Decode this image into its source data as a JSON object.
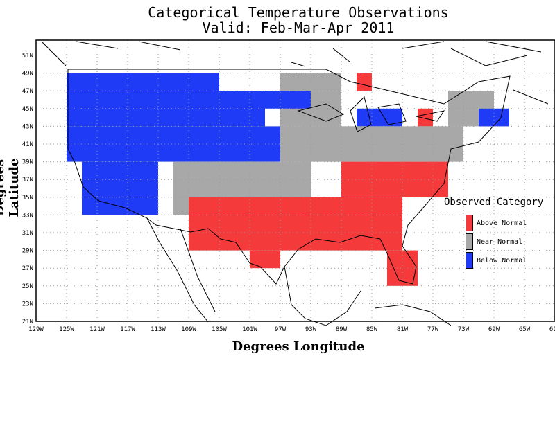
{
  "title_line1": "Categorical Temperature Observations",
  "title_line2": "Valid: Feb-Mar-Apr 2011",
  "xlabel": "Degrees Longitude",
  "ylabel": "Degrees Latitude",
  "legend": {
    "title": "Observed Category",
    "items": [
      {
        "label": "Above Normal",
        "color": "#f43a3a"
      },
      {
        "label": "Near Normal",
        "color": "#a8a8a8"
      },
      {
        "label": "Below Normal",
        "color": "#1f3bf5"
      }
    ]
  },
  "x_ticks": [
    "129W",
    "125W",
    "121W",
    "117W",
    "113W",
    "109W",
    "105W",
    "101W",
    "97W",
    "93W",
    "89W",
    "85W",
    "81W",
    "77W",
    "73W",
    "69W",
    "65W",
    "61W"
  ],
  "y_ticks": [
    "51N",
    "49N",
    "47N",
    "45N",
    "43N",
    "41N",
    "39N",
    "37N",
    "35N",
    "33N",
    "31N",
    "29N",
    "27N",
    "25N",
    "23N",
    "21N"
  ],
  "colors": {
    "above": "#f43a3a",
    "near": "#a8a8a8",
    "below": "#1f3bf5",
    "grid": "#9a9a9a"
  },
  "map_data": {
    "cell_size_deg": 2,
    "cells": [
      {
        "cat": "below",
        "lon": [
          -125,
          -105
        ],
        "lat": [
          47,
          49
        ]
      },
      {
        "cat": "near",
        "lon": [
          -97,
          -89
        ],
        "lat": [
          47,
          49
        ]
      },
      {
        "cat": "above",
        "lon": [
          -87,
          -85
        ],
        "lat": [
          47,
          49
        ]
      },
      {
        "cat": "below",
        "lon": [
          -125,
          -99
        ],
        "lat": [
          43,
          47
        ]
      },
      {
        "cat": "near",
        "lon": [
          -97,
          -89
        ],
        "lat": [
          43,
          47
        ]
      },
      {
        "cat": "below",
        "lon": [
          -99,
          -93
        ],
        "lat": [
          45,
          47
        ]
      },
      {
        "cat": "below",
        "lon": [
          -87,
          -81
        ],
        "lat": [
          43,
          45
        ]
      },
      {
        "cat": "above",
        "lon": [
          -79,
          -77
        ],
        "lat": [
          43,
          45
        ]
      },
      {
        "cat": "near",
        "lon": [
          -75,
          -69
        ],
        "lat": [
          43,
          47
        ]
      },
      {
        "cat": "below",
        "lon": [
          -71,
          -67
        ],
        "lat": [
          43,
          45
        ]
      },
      {
        "cat": "below",
        "lon": [
          -125,
          -97
        ],
        "lat": [
          39,
          43
        ]
      },
      {
        "cat": "near",
        "lon": [
          -97,
          -73
        ],
        "lat": [
          39,
          43
        ]
      },
      {
        "cat": "near",
        "lon": [
          -111,
          -93
        ],
        "lat": [
          33,
          39
        ]
      },
      {
        "cat": "above",
        "lon": [
          -89,
          -75
        ],
        "lat": [
          35,
          39
        ]
      },
      {
        "cat": "below",
        "lon": [
          -123,
          -113
        ],
        "lat": [
          33,
          39
        ]
      },
      {
        "cat": "above",
        "lon": [
          -109,
          -81
        ],
        "lat": [
          29,
          35
        ]
      },
      {
        "cat": "above",
        "lon": [
          -101,
          -97
        ],
        "lat": [
          27,
          29
        ]
      },
      {
        "cat": "above",
        "lon": [
          -83,
          -79
        ],
        "lat": [
          25,
          29
        ]
      }
    ]
  }
}
